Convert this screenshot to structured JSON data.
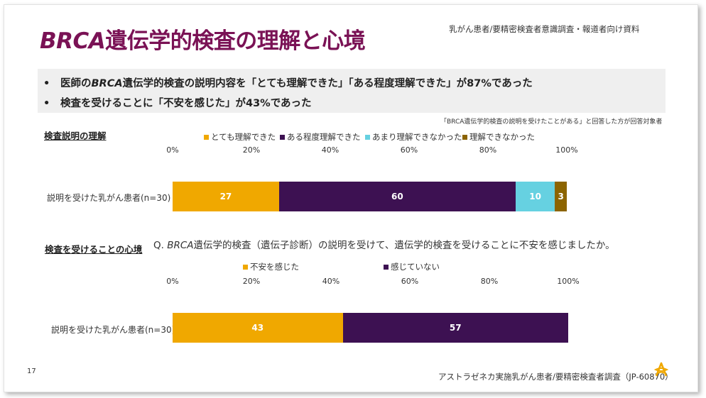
{
  "header": {
    "title_italic": "BRCA",
    "title_rest": "遺伝学的検査の理解と心境",
    "source_top": "乳がん患者/要精密検査者意識調査・報道者向け資料"
  },
  "bullets": [
    {
      "dot": "•",
      "pre": "医師の",
      "italic": "BRCA",
      "post": "遺伝学的検査の説明内容を「とても理解できた」「ある程度理解できた」が87%であった"
    },
    {
      "dot": "•",
      "pre": "",
      "italic": "",
      "post": "検査を受けることに「不安を感じた」が43%であった"
    }
  ],
  "note": "「BRCA遺伝学的検査の説明を受けたことがある」と回答した方が回答対象者",
  "section1": {
    "title": "検査説明の理解",
    "legend": [
      {
        "label": "とても理解できた",
        "color": "#f0a800"
      },
      {
        "label": "ある程度理解できた",
        "color": "#3d1152"
      },
      {
        "label": "あまり理解できなかった",
        "color": "#66d1e1"
      },
      {
        "label": "理解できなかった",
        "color": "#8c6400"
      }
    ],
    "ticks": [
      "0%",
      "20%",
      "40%",
      "60%",
      "80%",
      "100%"
    ],
    "row_label": "説明を受けた乳がん患者(n=30)"
  },
  "section2": {
    "title": "検査を受けることの心境",
    "question_pre": "Q. ",
    "question_italic": "BRCA",
    "question_rest": "遺伝学的検査（遺伝子診断）の説明を受けて、遺伝学的検査を受けることに不安を感じましたか。",
    "legend": [
      {
        "label": "不安を感じた",
        "color": "#f0a800"
      },
      {
        "label": "感じていない",
        "color": "#3d1152"
      }
    ],
    "ticks": [
      "0%",
      "20%",
      "40%",
      "60%",
      "80%",
      "100%"
    ],
    "row_label": "説明を受けた乳がん患者(n=30)"
  },
  "footer": {
    "page_number": "17",
    "source": "アストラゼネカ実施乳がん患者/要精密検査者調査（JP-60870）"
  },
  "chart_data": [
    {
      "type": "bar",
      "orientation": "horizontal",
      "stacked": true,
      "categories": [
        "説明を受けた乳がん患者(n=30)"
      ],
      "series": [
        {
          "name": "とても理解できた",
          "values": [
            27
          ]
        },
        {
          "name": "ある程度理解できた",
          "values": [
            60
          ]
        },
        {
          "name": "あまり理解できなかった",
          "values": [
            10
          ]
        },
        {
          "name": "理解できなかった",
          "values": [
            3
          ]
        }
      ],
      "xlim": [
        0,
        100
      ],
      "legend": "top"
    },
    {
      "type": "bar",
      "orientation": "horizontal",
      "stacked": true,
      "categories": [
        "説明を受けた乳がん患者(n=30)"
      ],
      "series": [
        {
          "name": "不安を感じた",
          "values": [
            43
          ]
        },
        {
          "name": "感じていない",
          "values": [
            57
          ]
        }
      ],
      "xlim": [
        0,
        100
      ],
      "legend": "top"
    }
  ]
}
